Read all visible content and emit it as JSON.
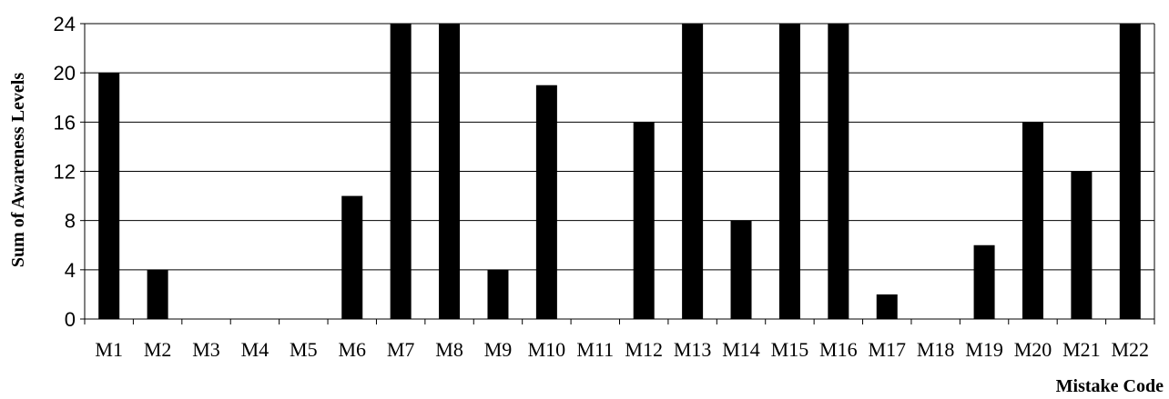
{
  "chart_data": {
    "type": "bar",
    "title": "",
    "xlabel": "Mistake Code",
    "ylabel": "Sum of Awareness Levels",
    "categories": [
      "M1",
      "M2",
      "M3",
      "M4",
      "M5",
      "M6",
      "M7",
      "M8",
      "M9",
      "M10",
      "M11",
      "M12",
      "M13",
      "M14",
      "M15",
      "M16",
      "M17",
      "M18",
      "M19",
      "M20",
      "M21",
      "M22"
    ],
    "values": [
      20,
      4,
      0,
      0,
      0,
      10,
      24,
      24,
      4,
      19,
      0,
      16,
      24,
      8,
      24,
      24,
      2,
      0,
      6,
      16,
      12,
      24
    ],
    "ylim": [
      0,
      24
    ],
    "yticks": [
      "0",
      "4",
      "8",
      "12",
      "16",
      "20",
      "24"
    ],
    "grid": true,
    "bar_color": "#000000",
    "grid_color": "#000000"
  }
}
